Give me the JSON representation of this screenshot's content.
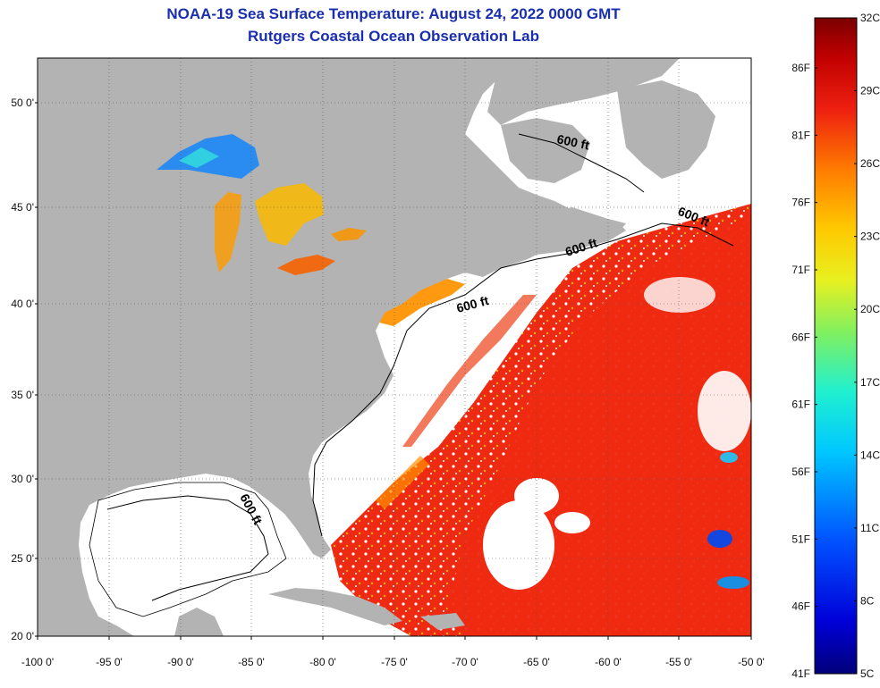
{
  "title": "NOAA-19 Sea Surface Temperature:  August 24, 2022 0000 GMT",
  "subtitle": "Rutgers Coastal Ocean Observation Lab",
  "lat_ticks": [
    "50 0'",
    "45 0'",
    "40 0'",
    "35 0'",
    "30 0'",
    "25 0'",
    "20 0'"
  ],
  "lon_ticks": [
    "-100 0'",
    "-95 0'",
    "-90 0'",
    "-85 0'",
    "-80 0'",
    "-75 0'",
    "-70 0'",
    "-65 0'",
    "-60 0'",
    "-55 0'",
    "-50 0'"
  ],
  "depth_labels": [
    "600 ft",
    "600 ft",
    "600 ft",
    "600 ft",
    "600 ft"
  ],
  "colorbar": {
    "celsius": [
      "32C",
      "29C",
      "26C",
      "23C",
      "20C",
      "17C",
      "14C",
      "11C",
      "8C",
      "5C"
    ],
    "fahrenheit": [
      "86F",
      "81F",
      "76F",
      "71F",
      "66F",
      "61F",
      "56F",
      "51F",
      "46F",
      "41F"
    ]
  },
  "colors": {
    "land": "#b3b3b3",
    "cloud": "#ffffff",
    "warm": "#ee2a12",
    "title": "#1a2fb0"
  }
}
